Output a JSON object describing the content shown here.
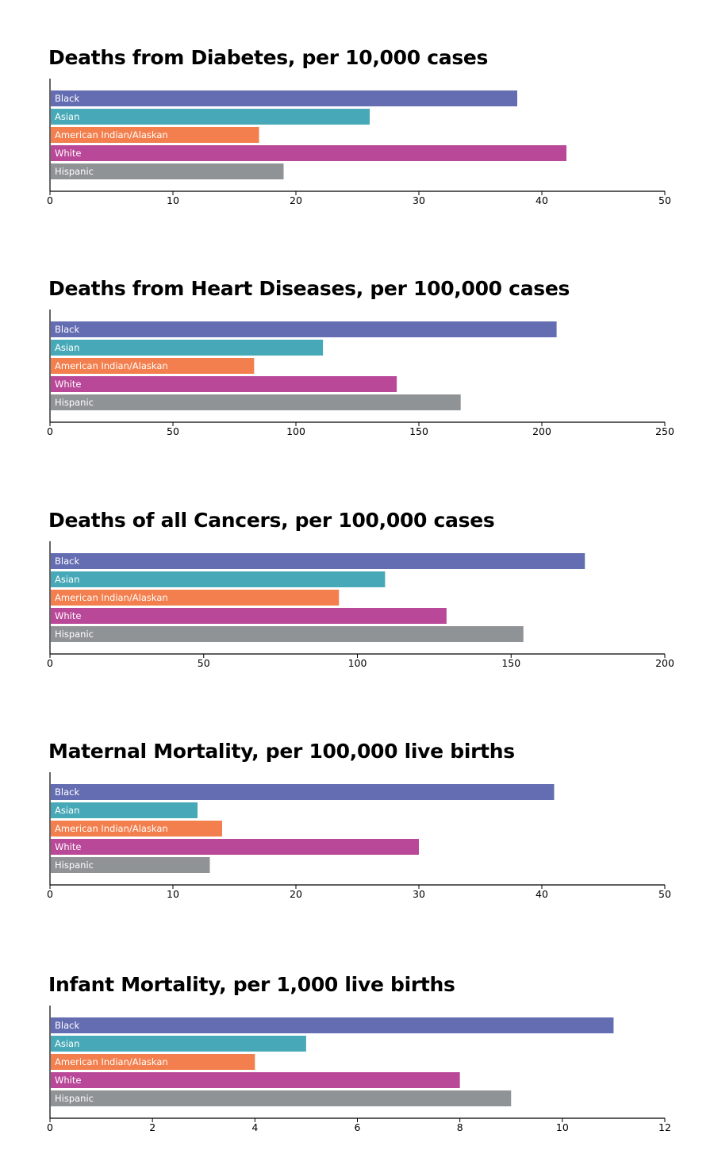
{
  "colors": {
    "Black": "#646db2",
    "Asian": "#47a9b7",
    "American Indian/Alaskan": "#f27f4d",
    "White": "#b94898",
    "Hispanic": "#909396"
  },
  "chart_data": [
    {
      "type": "bar",
      "orientation": "horizontal",
      "title": "Deaths from Diabetes, per 10,000 cases",
      "categories": [
        "Black",
        "Asian",
        "American Indian/Alaskan",
        "White",
        "Hispanic"
      ],
      "values": [
        38,
        26,
        17,
        42,
        19
      ],
      "xlim": [
        0,
        50
      ],
      "ticks": [
        0,
        10,
        20,
        30,
        40,
        50
      ],
      "xlabel": "",
      "ylabel": "",
      "grid": false
    },
    {
      "type": "bar",
      "orientation": "horizontal",
      "title": "Deaths from Heart Diseases, per 100,000 cases",
      "categories": [
        "Black",
        "Asian",
        "American Indian/Alaskan",
        "White",
        "Hispanic"
      ],
      "values": [
        206,
        111,
        83,
        141,
        167
      ],
      "xlim": [
        0,
        250
      ],
      "ticks": [
        0,
        50,
        100,
        150,
        200,
        250
      ],
      "xlabel": "",
      "ylabel": "",
      "grid": false
    },
    {
      "type": "bar",
      "orientation": "horizontal",
      "title": "Deaths of all Cancers, per 100,000 cases",
      "categories": [
        "Black",
        "Asian",
        "American Indian/Alaskan",
        "White",
        "Hispanic"
      ],
      "values": [
        174,
        109,
        94,
        129,
        154
      ],
      "xlim": [
        0,
        200
      ],
      "ticks": [
        0,
        50,
        100,
        150,
        200
      ],
      "xlabel": "",
      "ylabel": "",
      "grid": false
    },
    {
      "type": "bar",
      "orientation": "horizontal",
      "title": "Maternal Mortality, per 100,000 live births",
      "categories": [
        "Black",
        "Asian",
        "American Indian/Alaskan",
        "White",
        "Hispanic"
      ],
      "values": [
        41,
        12,
        14,
        30,
        13
      ],
      "xlim": [
        0,
        50
      ],
      "ticks": [
        0,
        10,
        20,
        30,
        40,
        50
      ],
      "xlabel": "",
      "ylabel": "",
      "grid": false
    },
    {
      "type": "bar",
      "orientation": "horizontal",
      "title": "Infant Mortality, per 1,000 live births",
      "categories": [
        "Black",
        "Asian",
        "American Indian/Alaskan",
        "White",
        "Hispanic"
      ],
      "values": [
        11,
        5,
        4,
        8,
        9
      ],
      "xlim": [
        0,
        12
      ],
      "ticks": [
        0,
        2,
        4,
        6,
        8,
        10,
        12
      ],
      "xlabel": "",
      "ylabel": "",
      "grid": false
    }
  ]
}
